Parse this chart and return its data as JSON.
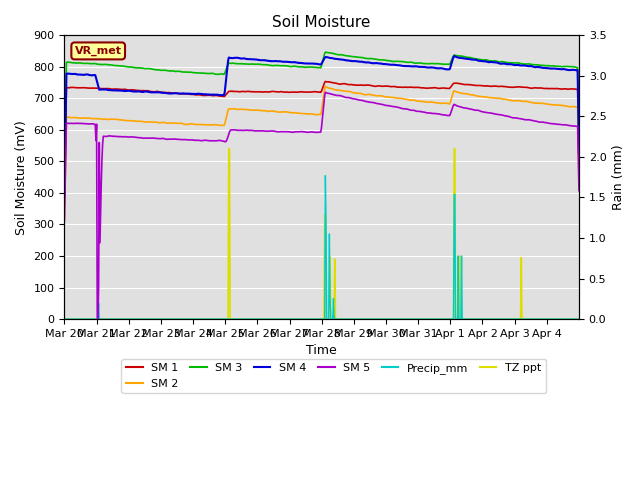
{
  "title": "Soil Moisture",
  "xlabel": "Time",
  "ylabel_left": "Soil Moisture (mV)",
  "ylabel_right": "Rain (mm)",
  "ylim_left": [
    0,
    900
  ],
  "ylim_right": [
    0,
    3.5
  ],
  "yticks_left": [
    0,
    100,
    200,
    300,
    400,
    500,
    600,
    700,
    800,
    900
  ],
  "yticks_right": [
    0.0,
    0.5,
    1.0,
    1.5,
    2.0,
    2.5,
    3.0,
    3.5
  ],
  "xtick_labels": [
    "Mar 20",
    "Mar 21",
    "Mar 22",
    "Mar 23",
    "Mar 24",
    "Mar 25",
    "Mar 26",
    "Mar 27",
    "Mar 28",
    "Mar 29",
    "Mar 30",
    "Mar 31",
    "Apr 1",
    "Apr 2",
    "Apr 3",
    "Apr 4"
  ],
  "annotation_text": "VR_met",
  "annotation_fg": "#8B0000",
  "annotation_bg": "#ffff99",
  "background_color": "#e0e0e0",
  "colors": {
    "SM1": "#cc0000",
    "SM2": "#ffa500",
    "SM3": "#00bb00",
    "SM4": "#0000dd",
    "SM5": "#aa00cc",
    "Precip_mm": "#00cccc",
    "TZ_ppt": "#dddd00"
  },
  "n_per_day": 48,
  "n_days": 16
}
